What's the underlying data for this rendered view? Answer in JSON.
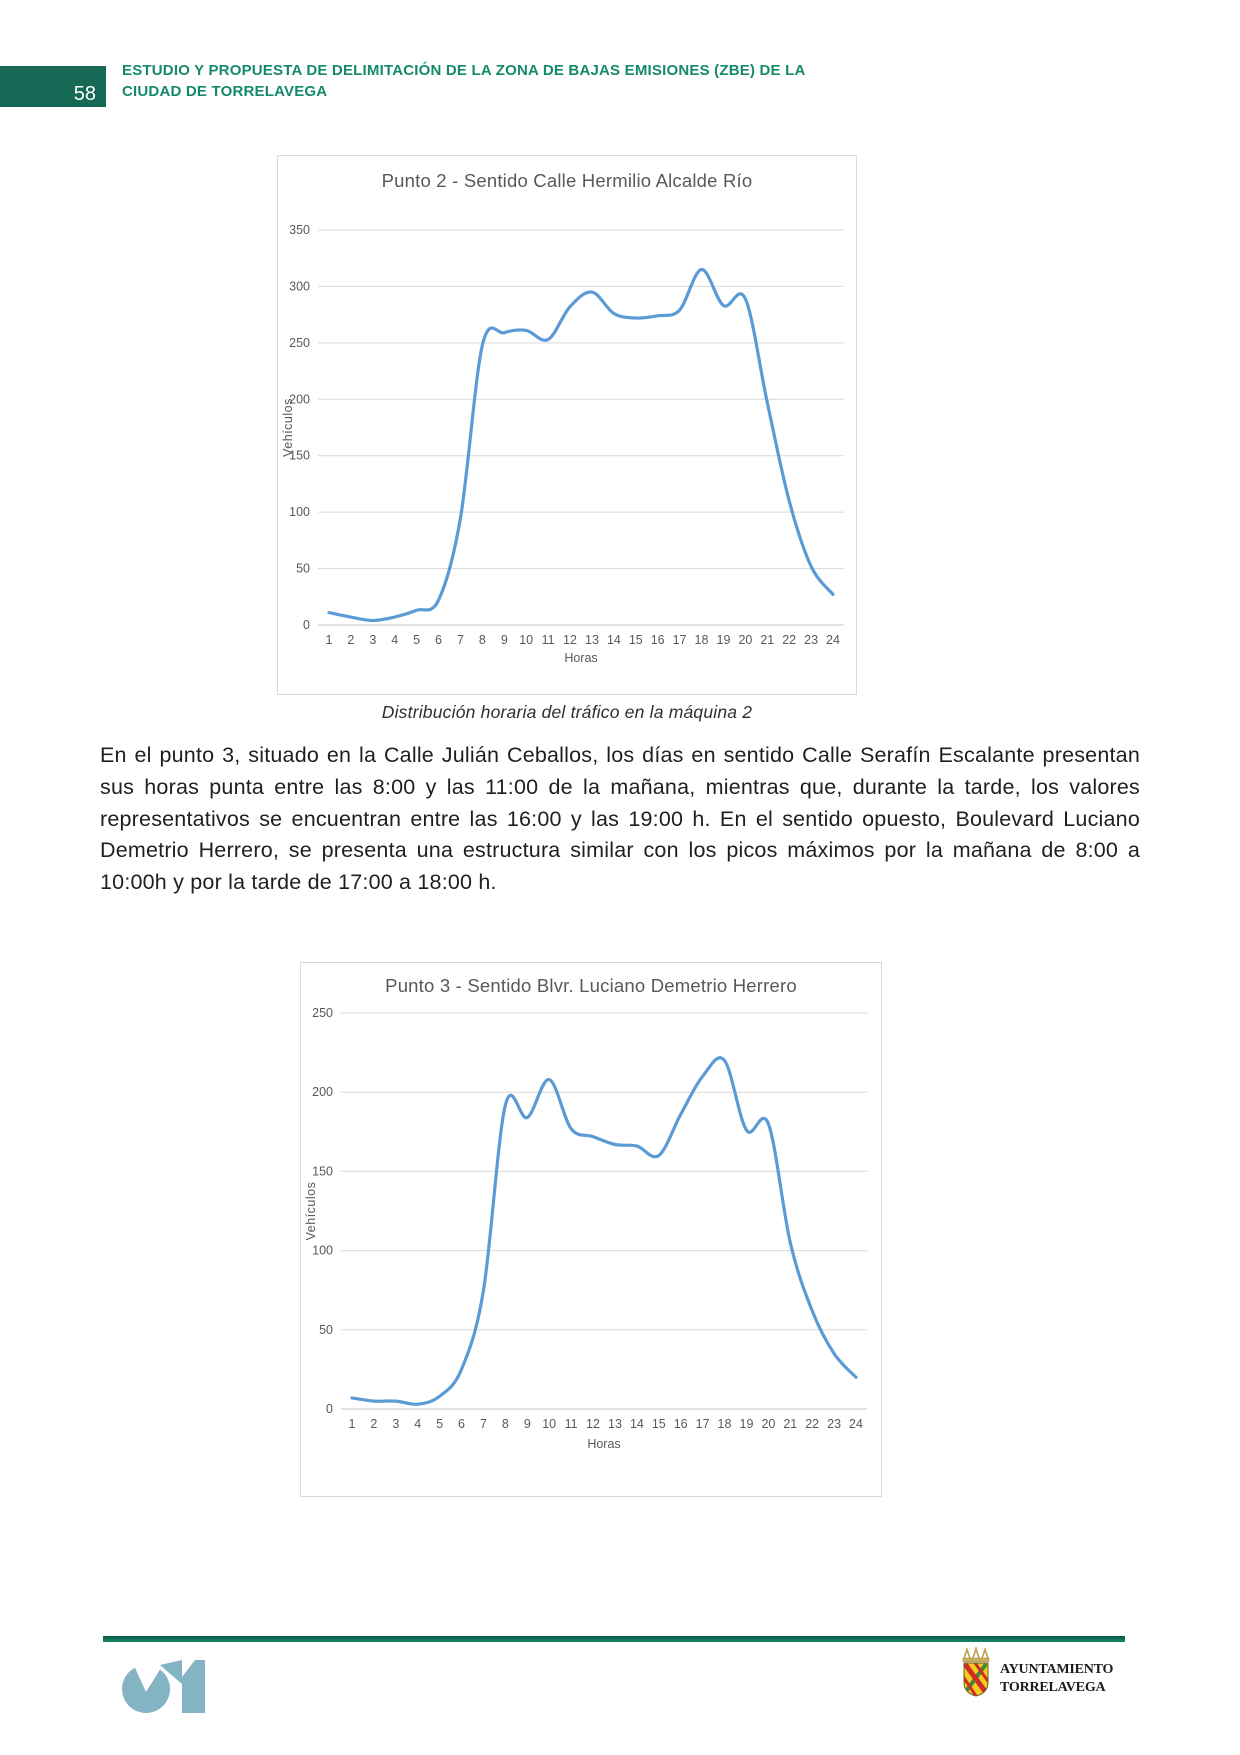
{
  "page": {
    "number": "58",
    "header_title": "ESTUDIO Y PROPUESTA DE DELIMITACIÓN DE LA ZONA DE BAJAS EMISIONES (ZBE) DE LA CIUDAD DE TORRELAVEGA"
  },
  "figure1": {
    "caption": "Distribución horaria del tráfico en la máquina 2"
  },
  "body": {
    "paragraph": "En el punto 3, situado en la Calle Julián Ceballos, los días en sentido Calle Serafín Escalante presentan sus horas punta entre las 8:00 y las 11:00 de la mañana, mientras que, durante la tarde, los valores representativos se encuentran entre las 16:00 y las 19:00 h. En el sentido opuesto, Boulevard Luciano Demetrio Herrero, se presenta una estructura similar con los picos máximos por la mañana de 8:00 a 10:00h y por la tarde de 17:00 a 18:00 h."
  },
  "footer": {
    "org_line1": "AYUNTAMIENTO",
    "org_line2": "TORRELAVEGA"
  },
  "colors": {
    "header_green": "#148a6a",
    "header_box_green": "#156955",
    "footer_line_green": "#0e6450",
    "chart_line_blue": "#5B9BD5",
    "gridline_gray": "#d9d9d9",
    "axis_text_gray": "#595959",
    "consultant_logo_teal": "#84b3c3",
    "crest_yellow": "#f2cf1d",
    "crest_red": "#d22b28",
    "crest_green": "#3a8a3a",
    "crest_gold": "#cbb05c"
  },
  "chart_data": [
    {
      "type": "line",
      "title": "Punto 2 - Sentido Calle Hermilio Alcalde Río",
      "xlabel": "Horas",
      "ylabel": "Vehículos",
      "categories": [
        1,
        2,
        3,
        4,
        5,
        6,
        7,
        8,
        9,
        10,
        11,
        12,
        13,
        14,
        15,
        16,
        17,
        18,
        19,
        20,
        21,
        22,
        23,
        24
      ],
      "values": [
        11,
        7,
        4,
        7,
        13,
        22,
        95,
        248,
        259,
        261,
        253,
        282,
        295,
        276,
        272,
        274,
        279,
        315,
        283,
        289,
        197,
        110,
        52,
        27
      ],
      "ylim": [
        0,
        350
      ],
      "yticks": [
        0,
        50,
        100,
        150,
        200,
        250,
        300,
        350
      ],
      "grid": true,
      "legend": "none",
      "line_color": "#5B9BD5"
    },
    {
      "type": "line",
      "title": "Punto 3 - Sentido Blvr. Luciano Demetrio Herrero",
      "xlabel": "Horas",
      "ylabel": "Vehículos",
      "categories": [
        1,
        2,
        3,
        4,
        5,
        6,
        7,
        8,
        9,
        10,
        11,
        12,
        13,
        14,
        15,
        16,
        17,
        18,
        19,
        20,
        21,
        22,
        23,
        24
      ],
      "values": [
        7,
        5,
        5,
        3,
        8,
        25,
        75,
        192,
        184,
        208,
        177,
        172,
        167,
        166,
        160,
        186,
        210,
        220,
        176,
        180,
        105,
        62,
        35,
        20
      ],
      "ylim": [
        0,
        250
      ],
      "yticks": [
        0,
        50,
        100,
        150,
        200,
        250
      ],
      "grid": true,
      "legend": "none",
      "line_color": "#5B9BD5"
    }
  ]
}
